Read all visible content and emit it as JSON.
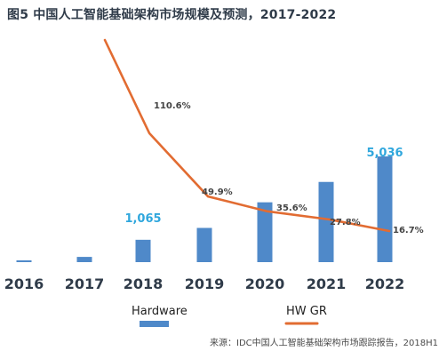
{
  "title": "图5 中国人工智能基础架构市场规模及预测，2017-2022",
  "source": "来源：IDC中国人工智能基础架构市场跟踪报告，2018H1",
  "colors": {
    "bar": "#4f89c9",
    "line": "#e26c32",
    "text": "#2f3b49",
    "highlight": "#30a7dd"
  },
  "chart_data": {
    "type": "bar",
    "categories": [
      "2016",
      "2017",
      "2018",
      "2019",
      "2020",
      "2021",
      "2022"
    ],
    "series": [
      {
        "name": "Hardware",
        "type": "bar",
        "values": [
          20,
          250,
          1065,
          1630,
          2850,
          3820,
          5036
        ],
        "labels": [
          "",
          "",
          "1,065",
          "",
          "",
          "",
          "5,036"
        ]
      },
      {
        "name": "HW GR",
        "type": "line",
        "values": [
          null,
          200,
          110.6,
          49.9,
          35.6,
          27.8,
          16.7
        ],
        "labels": [
          "",
          "",
          "110.6%",
          "49.9%",
          "35.6%",
          "27.8%",
          "16.7%"
        ]
      }
    ],
    "legend": {
      "position": "bottom",
      "items": [
        "Hardware",
        "HW GR"
      ]
    },
    "xlabel": "",
    "ylabel": "",
    "ylim": [
      0,
      5500
    ]
  }
}
